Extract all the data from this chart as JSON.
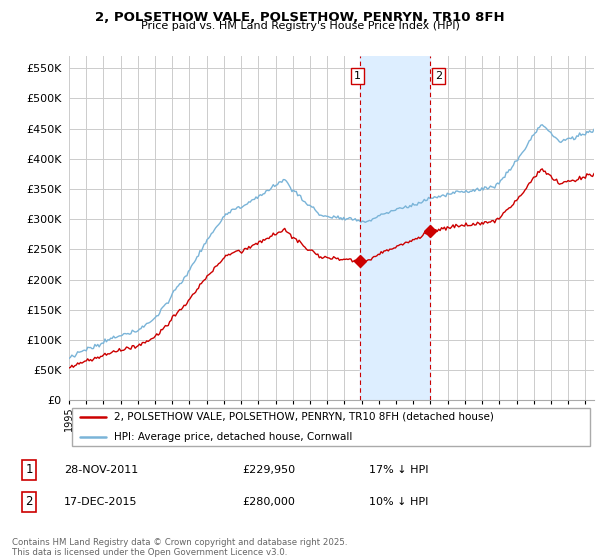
{
  "title": "2, POLSETHOW VALE, POLSETHOW, PENRYN, TR10 8FH",
  "subtitle": "Price paid vs. HM Land Registry's House Price Index (HPI)",
  "ytick_values": [
    0,
    50000,
    100000,
    150000,
    200000,
    250000,
    300000,
    350000,
    400000,
    450000,
    500000,
    550000
  ],
  "ylim": [
    0,
    570000
  ],
  "xlim_start": 1995.0,
  "xlim_end": 2025.5,
  "sale1_date": 2011.91,
  "sale1_price": 229950,
  "sale1_label": "1",
  "sale2_date": 2015.96,
  "sale2_price": 280000,
  "sale2_label": "2",
  "legend_line1": "2, POLSETHOW VALE, POLSETHOW, PENRYN, TR10 8FH (detached house)",
  "legend_line2": "HPI: Average price, detached house, Cornwall",
  "footnote": "Contains HM Land Registry data © Crown copyright and database right 2025.\nThis data is licensed under the Open Government Licence v3.0.",
  "hpi_color": "#7ab4d8",
  "sold_color": "#cc0000",
  "vline_color": "#cc0000",
  "shade_color": "#ddeeff",
  "background_color": "#ffffff",
  "grid_color": "#cccccc"
}
